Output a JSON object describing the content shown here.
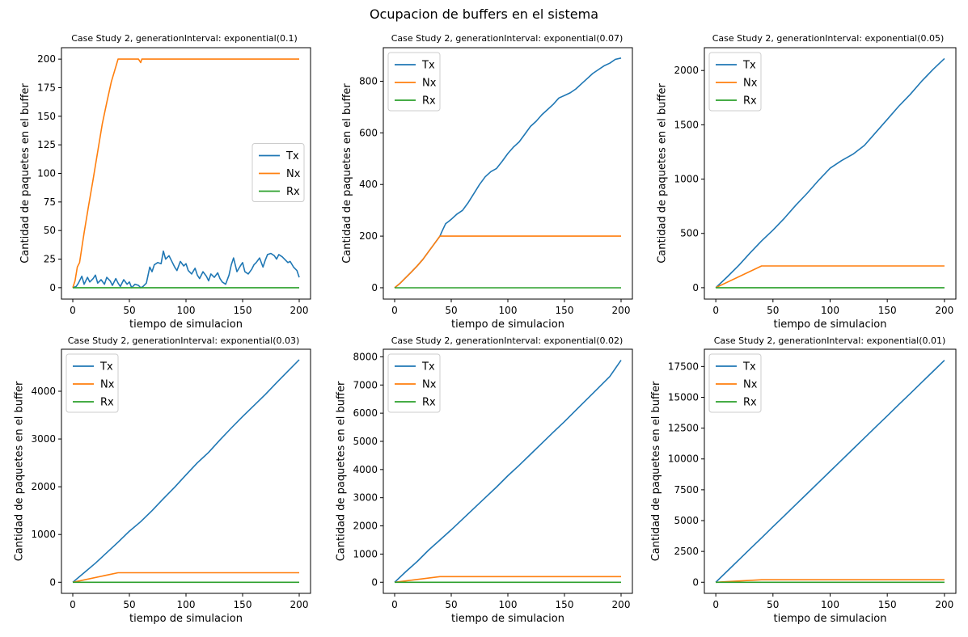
{
  "figure": {
    "title": "Ocupacion de buffers en el sistema"
  },
  "colors": {
    "Tx": "#1f77b4",
    "Nx": "#ff7f0e",
    "Rx": "#2ca02c"
  },
  "chart_data": [
    {
      "type": "line",
      "title": "Case Study 2, generationInterval: exponential(0.1)",
      "xlabel": "tiempo de simulacion",
      "ylabel": "Cantidad de paquetes en el buffer",
      "xlim": [
        -10,
        210
      ],
      "ylim": [
        -10,
        210
      ],
      "xticks": [
        0,
        50,
        100,
        150,
        200
      ],
      "yticks": [
        0,
        25,
        50,
        75,
        100,
        125,
        150,
        175,
        200
      ],
      "legend": "center-right",
      "series": [
        {
          "name": "Tx",
          "x": [
            0,
            3,
            5,
            8,
            10,
            13,
            15,
            18,
            20,
            22,
            25,
            28,
            30,
            33,
            35,
            38,
            40,
            42,
            45,
            48,
            50,
            52,
            55,
            58,
            60,
            62,
            65,
            68,
            70,
            72,
            75,
            78,
            80,
            82,
            85,
            88,
            90,
            92,
            95,
            98,
            100,
            102,
            105,
            108,
            110,
            112,
            115,
            118,
            120,
            122,
            125,
            128,
            130,
            132,
            135,
            138,
            140,
            142,
            145,
            148,
            150,
            152,
            155,
            158,
            160,
            162,
            165,
            168,
            170,
            172,
            175,
            178,
            180,
            182,
            185,
            188,
            190,
            192,
            195,
            198,
            200
          ],
          "y": [
            0,
            1,
            4,
            10,
            3,
            9,
            5,
            8,
            11,
            4,
            7,
            3,
            9,
            6,
            2,
            8,
            4,
            1,
            7,
            3,
            5,
            0,
            3,
            2,
            0,
            1,
            4,
            18,
            14,
            20,
            22,
            21,
            32,
            25,
            28,
            22,
            18,
            15,
            23,
            19,
            21,
            15,
            12,
            17,
            11,
            8,
            14,
            10,
            6,
            12,
            9,
            13,
            8,
            5,
            3,
            11,
            20,
            26,
            14,
            19,
            22,
            14,
            12,
            16,
            20,
            22,
            26,
            18,
            24,
            29,
            30,
            28,
            25,
            29,
            27,
            24,
            22,
            23,
            18,
            15,
            9
          ]
        },
        {
          "name": "Nx",
          "x": [
            0,
            2,
            4,
            6,
            8,
            10,
            14,
            18,
            22,
            26,
            30,
            34,
            37,
            40,
            42,
            43,
            50,
            55,
            58,
            60,
            61,
            65,
            70,
            80,
            90,
            100,
            150,
            200
          ],
          "y": [
            0,
            6,
            18,
            22,
            35,
            48,
            72,
            95,
            119,
            143,
            162,
            180,
            190,
            200,
            200,
            200,
            200,
            200,
            200,
            197,
            200,
            200,
            200,
            200,
            200,
            200,
            200,
            200
          ]
        },
        {
          "name": "Rx",
          "x": [
            0,
            200
          ],
          "y": [
            0,
            0
          ]
        }
      ]
    },
    {
      "type": "line",
      "title": "Case Study 2, generationInterval: exponential(0.07)",
      "xlabel": "tiempo de simulacion",
      "ylabel": "Cantidad de paquetes en el buffer",
      "xlim": [
        -10,
        210
      ],
      "ylim": [
        -44,
        930
      ],
      "xticks": [
        0,
        50,
        100,
        150,
        200
      ],
      "yticks": [
        0,
        200,
        400,
        600,
        800
      ],
      "legend": "upper-left",
      "series": [
        {
          "name": "Tx",
          "x": [
            0,
            5,
            10,
            15,
            20,
            25,
            30,
            35,
            40,
            42,
            45,
            48,
            50,
            55,
            60,
            65,
            70,
            75,
            80,
            85,
            90,
            95,
            100,
            105,
            110,
            115,
            120,
            125,
            130,
            135,
            140,
            145,
            150,
            155,
            160,
            165,
            170,
            175,
            180,
            185,
            190,
            195,
            200
          ],
          "y": [
            0,
            18,
            40,
            62,
            85,
            110,
            140,
            170,
            200,
            220,
            248,
            258,
            265,
            285,
            300,
            330,
            365,
            400,
            430,
            450,
            462,
            490,
            520,
            545,
            565,
            595,
            625,
            645,
            670,
            690,
            710,
            735,
            745,
            755,
            770,
            790,
            810,
            830,
            845,
            860,
            870,
            885,
            890
          ]
        },
        {
          "name": "Nx",
          "x": [
            0,
            5,
            10,
            15,
            20,
            25,
            30,
            35,
            40,
            45,
            100,
            150,
            200
          ],
          "y": [
            0,
            18,
            40,
            62,
            85,
            110,
            140,
            170,
            200,
            200,
            200,
            200,
            200
          ]
        },
        {
          "name": "Rx",
          "x": [
            0,
            200
          ],
          "y": [
            0,
            0
          ]
        }
      ]
    },
    {
      "type": "line",
      "title": "Case Study 2, generationInterval: exponential(0.05)",
      "xlabel": "tiempo de simulacion",
      "ylabel": "Cantidad de paquetes en el buffer",
      "xlim": [
        -10,
        210
      ],
      "ylim": [
        -105,
        2210
      ],
      "xticks": [
        0,
        50,
        100,
        150,
        200
      ],
      "yticks": [
        0,
        500,
        1000,
        1500,
        2000
      ],
      "legend": "upper-left",
      "series": [
        {
          "name": "Tx",
          "x": [
            0,
            10,
            20,
            30,
            40,
            50,
            60,
            70,
            80,
            90,
            100,
            110,
            120,
            130,
            140,
            150,
            160,
            170,
            180,
            190,
            200
          ],
          "y": [
            0,
            100,
            205,
            320,
            430,
            530,
            640,
            760,
            870,
            990,
            1100,
            1170,
            1230,
            1310,
            1430,
            1550,
            1670,
            1780,
            1900,
            2010,
            2110
          ]
        },
        {
          "name": "Nx",
          "x": [
            0,
            40,
            100,
            150,
            200
          ],
          "y": [
            0,
            200,
            200,
            200,
            200
          ]
        },
        {
          "name": "Rx",
          "x": [
            0,
            200
          ],
          "y": [
            0,
            0
          ]
        }
      ]
    },
    {
      "type": "line",
      "title": "Case Study 2, generationInterval: exponential(0.03)",
      "xlabel": "tiempo de simulacion",
      "ylabel": "Cantidad de paquetes en el buffer",
      "xlim": [
        -10,
        210
      ],
      "ylim": [
        -232,
        4880
      ],
      "xticks": [
        0,
        50,
        100,
        150,
        200
      ],
      "yticks": [
        0,
        1000,
        2000,
        3000,
        4000
      ],
      "legend": "upper-left",
      "series": [
        {
          "name": "Tx",
          "x": [
            0,
            10,
            20,
            30,
            40,
            50,
            60,
            70,
            80,
            90,
            100,
            110,
            120,
            130,
            140,
            150,
            160,
            170,
            180,
            190,
            200
          ],
          "y": [
            0,
            200,
            400,
            620,
            840,
            1070,
            1270,
            1500,
            1750,
            1990,
            2250,
            2500,
            2720,
            2980,
            3230,
            3470,
            3700,
            3930,
            4180,
            4420,
            4660
          ]
        },
        {
          "name": "Nx",
          "x": [
            0,
            40,
            100,
            150,
            200
          ],
          "y": [
            0,
            200,
            200,
            200,
            200
          ]
        },
        {
          "name": "Rx",
          "x": [
            0,
            200
          ],
          "y": [
            0,
            0
          ]
        }
      ]
    },
    {
      "type": "line",
      "title": "Case Study 2, generationInterval: exponential(0.02)",
      "xlabel": "tiempo de simulacion",
      "ylabel": "Cantidad de paquetes en el buffer",
      "xlim": [
        -10,
        210
      ],
      "ylim": [
        -394,
        8270
      ],
      "xticks": [
        0,
        50,
        100,
        150,
        200
      ],
      "yticks": [
        0,
        1000,
        2000,
        3000,
        4000,
        5000,
        6000,
        7000,
        8000
      ],
      "legend": "upper-left",
      "series": [
        {
          "name": "Tx",
          "x": [
            0,
            10,
            20,
            30,
            40,
            50,
            60,
            70,
            80,
            90,
            100,
            110,
            120,
            130,
            140,
            150,
            160,
            170,
            180,
            190,
            200
          ],
          "y": [
            0,
            380,
            740,
            1140,
            1500,
            1860,
            2240,
            2620,
            3000,
            3380,
            3780,
            4150,
            4540,
            4930,
            5320,
            5700,
            6100,
            6500,
            6900,
            7300,
            7880
          ]
        },
        {
          "name": "Nx",
          "x": [
            0,
            40,
            100,
            150,
            200
          ],
          "y": [
            0,
            200,
            200,
            200,
            200
          ]
        },
        {
          "name": "Rx",
          "x": [
            0,
            200
          ],
          "y": [
            0,
            0
          ]
        }
      ]
    },
    {
      "type": "line",
      "title": "Case Study 2, generationInterval: exponential(0.01)",
      "xlabel": "tiempo de simulacion",
      "ylabel": "Cantidad de paquetes en el buffer",
      "xlim": [
        -10,
        210
      ],
      "ylim": [
        -900,
        18900
      ],
      "xticks": [
        0,
        50,
        100,
        150,
        200
      ],
      "yticks": [
        0,
        2500,
        5000,
        7500,
        10000,
        12500,
        15000,
        17500
      ],
      "legend": "upper-left",
      "series": [
        {
          "name": "Tx",
          "x": [
            0,
            10,
            20,
            30,
            40,
            50,
            60,
            70,
            80,
            90,
            100,
            110,
            120,
            130,
            140,
            150,
            160,
            170,
            180,
            190,
            200
          ],
          "y": [
            0,
            900,
            1800,
            2700,
            3600,
            4500,
            5400,
            6300,
            7200,
            8100,
            9000,
            9900,
            10800,
            11700,
            12600,
            13500,
            14400,
            15300,
            16200,
            17100,
            18000
          ]
        },
        {
          "name": "Nx",
          "x": [
            0,
            40,
            100,
            150,
            200
          ],
          "y": [
            0,
            200,
            200,
            200,
            200
          ]
        },
        {
          "name": "Rx",
          "x": [
            0,
            200
          ],
          "y": [
            0,
            0
          ]
        }
      ]
    }
  ]
}
